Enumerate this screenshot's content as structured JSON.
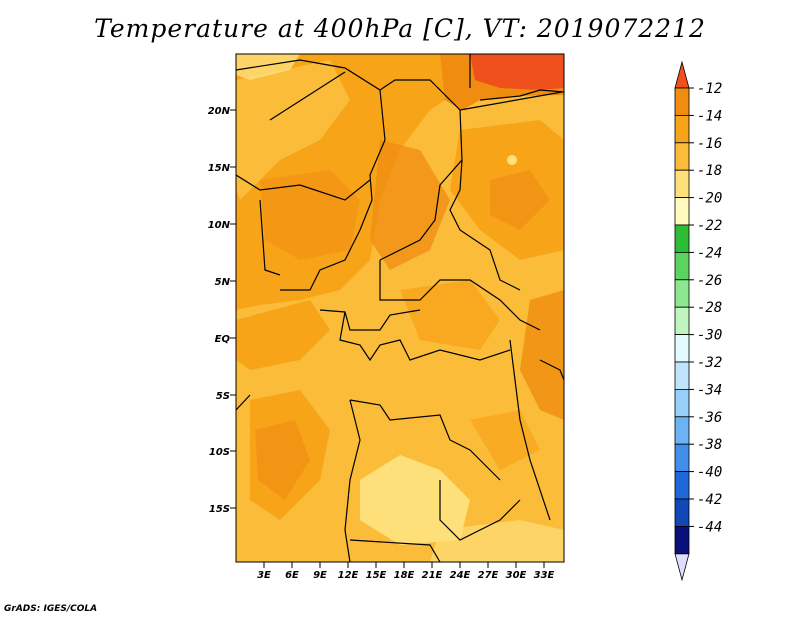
{
  "title": "Temperature at 400hPa [C], VT: 2019072212",
  "credit": "GrADS: IGES/COLA",
  "map": {
    "lat_labels": [
      "20N",
      "15N",
      "10N",
      "5N",
      "EQ",
      "5S",
      "10S",
      "15S"
    ],
    "lon_labels": [
      "3E",
      "6E",
      "9E",
      "12E",
      "15E",
      "18E",
      "21E",
      "24E",
      "27E",
      "30E",
      "33E"
    ]
  },
  "colorbar": {
    "labels": [
      "-12",
      "-14",
      "-16",
      "-18",
      "-20",
      "-22",
      "-24",
      "-26",
      "-28",
      "-30",
      "-32",
      "-34",
      "-36",
      "-38",
      "-40",
      "-42",
      "-44"
    ],
    "colors": [
      "#f0501c",
      "#f08c10",
      "#f7a419",
      "#fbbc3a",
      "#fee07a",
      "#fefbbd",
      "#2cbd35",
      "#5ad45f",
      "#8ce88e",
      "#c0f5bf",
      "#e4fbfe",
      "#bee4fc",
      "#96cff9",
      "#6cb3f4",
      "#418fea",
      "#1d69d9",
      "#1148b6",
      "#0a0f7a",
      "#dedefe"
    ]
  }
}
